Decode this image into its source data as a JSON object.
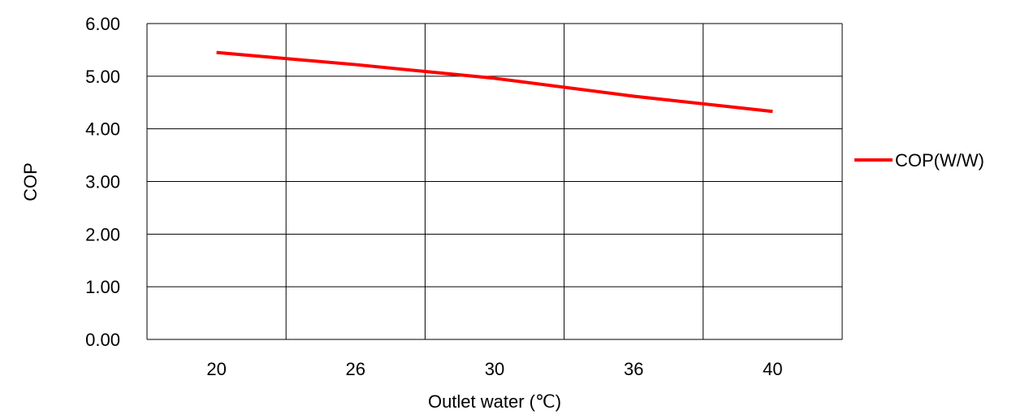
{
  "chart_data": {
    "type": "line",
    "categories": [
      "20",
      "26",
      "30",
      "36",
      "40"
    ],
    "series": [
      {
        "name": "COP(W/W)",
        "values": [
          5.45,
          5.22,
          4.96,
          4.62,
          4.33
        ],
        "color": "#ff0000"
      }
    ],
    "xlabel": "Outlet water (℃)",
    "ylabel": "COP",
    "ylim": [
      0,
      6
    ],
    "yticks": [
      "0.00",
      "1.00",
      "2.00",
      "3.00",
      "4.00",
      "5.00",
      "6.00"
    ],
    "grid": true,
    "legend": "right"
  }
}
